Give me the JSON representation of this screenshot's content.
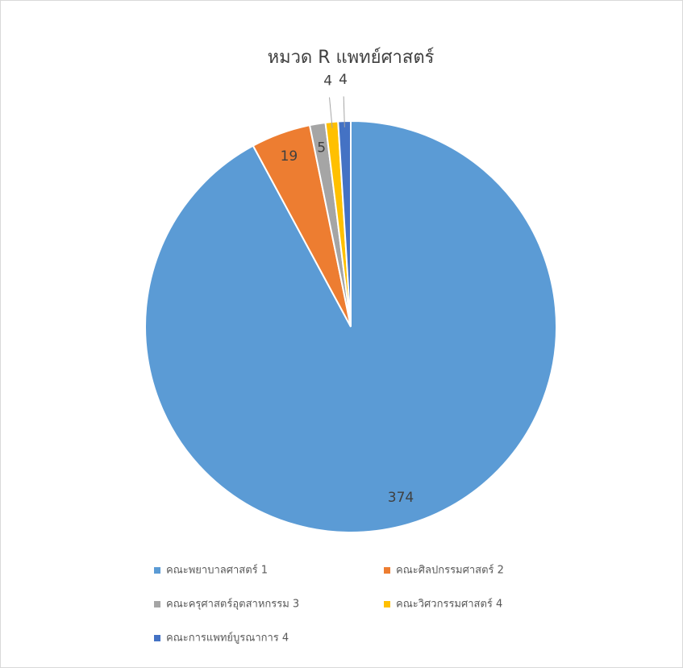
{
  "chart_data": {
    "type": "pie",
    "title": "หมวด R  แพทย์ศาสตร์",
    "categories": [
      "คณะพยาบาลศาสตร์ 1",
      "คณะศิลปกรรมศาสตร์ 2",
      "คณะครุศาสตร์อุตสาหกรรม 3",
      "คณะวิศวกรรมศาสตร์ 4",
      "คณะการแพทย์บูรณาการ 4"
    ],
    "values": [
      374,
      19,
      5,
      4,
      4
    ],
    "colors": [
      "#5b9bd5",
      "#ed7d31",
      "#a5a5a5",
      "#ffc000",
      "#4472c4"
    ],
    "legend": "bottom"
  }
}
